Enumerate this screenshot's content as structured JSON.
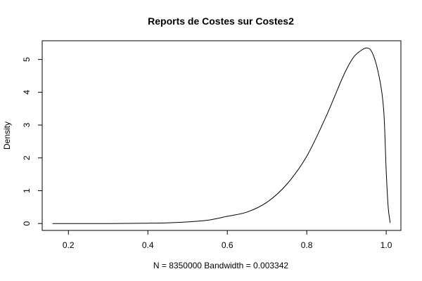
{
  "chart_data": {
    "type": "line",
    "title": "Reports de Costes sur Costes2",
    "xlabel": "N = 8350000   Bandwidth = 0.003342",
    "ylabel": "Density",
    "xlim": [
      0.134,
      1.037
    ],
    "ylim": [
      -0.21,
      5.57
    ],
    "x_ticks": [
      0.2,
      0.4,
      0.6,
      0.8,
      1.0
    ],
    "x_tick_labels": [
      "0.2",
      "0.4",
      "0.6",
      "0.8",
      "1.0"
    ],
    "y_ticks": [
      0,
      1,
      2,
      3,
      4,
      5
    ],
    "y_tick_labels": [
      "0",
      "1",
      "2",
      "3",
      "4",
      "5"
    ],
    "grid": false,
    "series": [
      {
        "x": [
          0.16,
          0.3,
          0.4,
          0.45,
          0.5,
          0.55,
          0.6,
          0.65,
          0.7,
          0.75,
          0.8,
          0.85,
          0.9,
          0.92,
          0.94,
          0.95,
          0.96,
          0.97,
          0.98,
          0.99,
          0.995,
          1.0,
          1.005,
          1.01
        ],
        "y": [
          0.0,
          0.0,
          0.01,
          0.02,
          0.05,
          0.1,
          0.22,
          0.35,
          0.65,
          1.2,
          2.05,
          3.3,
          4.7,
          5.1,
          5.3,
          5.35,
          5.3,
          5.05,
          4.6,
          3.9,
          3.2,
          1.6,
          0.5,
          0.02
        ]
      }
    ]
  }
}
